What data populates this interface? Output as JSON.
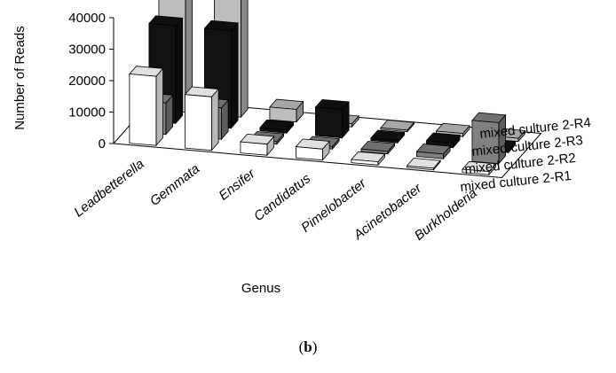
{
  "chart_data": {
    "type": "bar",
    "xlabel": "Genus",
    "ylabel": "Number of Reads",
    "ylim": [
      0,
      40000
    ],
    "yticks": [
      "0",
      "10000",
      "20000",
      "30000",
      "40000"
    ],
    "categories": [
      "Leadbetterella",
      "Gemmata",
      "Ensifer",
      "Candidatus",
      "Pimelobacter",
      "Acinetobacter",
      "Burkholderia"
    ],
    "series": [
      {
        "name": "mixed culture 2-R1",
        "color": "#ffffff",
        "values": [
          22000,
          17000,
          3500,
          3500,
          1000,
          500,
          1000
        ]
      },
      {
        "name": "mixed culture 2-R2",
        "color": "#808080",
        "values": [
          10000,
          10000,
          800,
          800,
          800,
          1500,
          13000
        ]
      },
      {
        "name": "mixed culture 2-R3",
        "color": "#111111",
        "values": [
          31000,
          31000,
          1000,
          9000,
          800,
          1500,
          1000
        ]
      },
      {
        "name": "mixed culture 2-R4",
        "color": "#bdbdbd",
        "values": [
          40000,
          40000,
          4000,
          1000,
          500,
          1000,
          1000
        ]
      }
    ],
    "grid": false,
    "panel_label": "(b)"
  }
}
